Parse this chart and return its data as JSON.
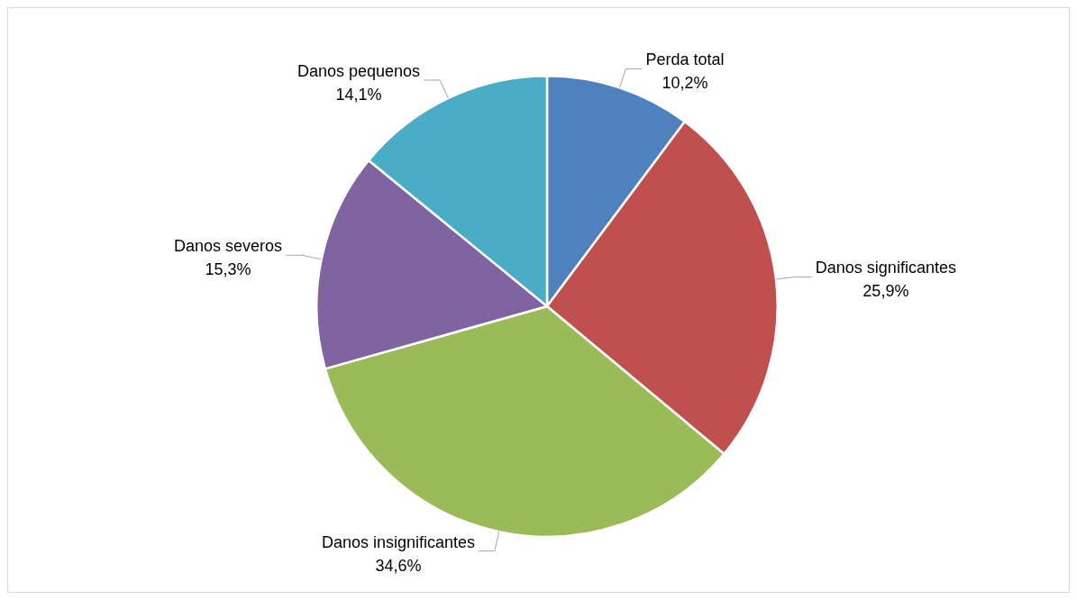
{
  "chart_data": {
    "type": "pie",
    "categories": [
      "Perda total",
      "Danos significantes",
      "Danos insignificantes",
      "Danos severos",
      "Danos pequenos"
    ],
    "values": [
      10.2,
      25.9,
      34.6,
      15.3,
      14.1
    ],
    "value_labels": [
      "10,2%",
      "25,9%",
      "34,6%",
      "15,3%",
      "14,1%"
    ],
    "colors": [
      "#4f81bd",
      "#c0504d",
      "#9bbb59",
      "#8064a2",
      "#4bacc6"
    ],
    "legend": false
  }
}
